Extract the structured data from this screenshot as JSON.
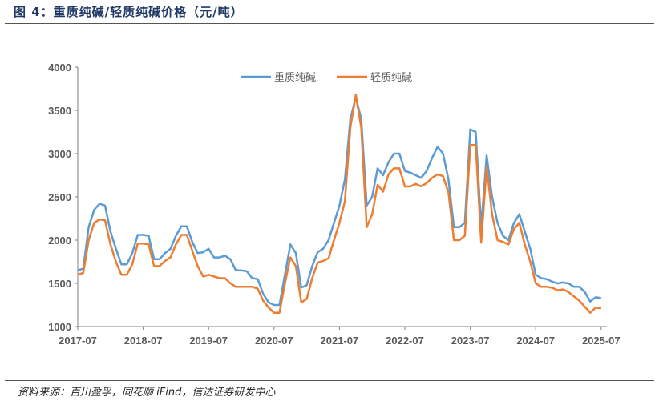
{
  "title": "图 4：重质纯碱/轻质纯碱价格（元/吨）",
  "source": "资料来源：百川盈孚，同花顺 iFind，信达证券研发中心",
  "chart_data": {
    "type": "line",
    "title": "重质纯碱/轻质纯碱价格（元/吨）",
    "xlabel": "",
    "ylabel": "",
    "ylim": [
      1000,
      4000
    ],
    "yticks": [
      "1000",
      "1500",
      "2000",
      "2500",
      "3000",
      "3500",
      "4000"
    ],
    "xticks": [
      "2017-07",
      "2018-07",
      "2019-07",
      "2020-07",
      "2021-07",
      "2022-07",
      "2023-07",
      "2024-07",
      "2025-07"
    ],
    "grid": false,
    "legend_position": "top-center",
    "x": [
      "2017-07",
      "2017-08",
      "2017-09",
      "2017-10",
      "2017-11",
      "2017-12",
      "2018-01",
      "2018-02",
      "2018-03",
      "2018-04",
      "2018-05",
      "2018-06",
      "2018-07",
      "2018-08",
      "2018-09",
      "2018-10",
      "2018-11",
      "2018-12",
      "2019-01",
      "2019-02",
      "2019-03",
      "2019-04",
      "2019-05",
      "2019-06",
      "2019-07",
      "2019-08",
      "2019-09",
      "2019-10",
      "2019-11",
      "2019-12",
      "2020-01",
      "2020-02",
      "2020-03",
      "2020-04",
      "2020-05",
      "2020-06",
      "2020-07",
      "2020-08",
      "2020-09",
      "2020-10",
      "2020-11",
      "2020-12",
      "2021-01",
      "2021-02",
      "2021-03",
      "2021-04",
      "2021-05",
      "2021-06",
      "2021-07",
      "2021-08",
      "2021-09",
      "2021-10",
      "2021-11",
      "2021-12",
      "2022-01",
      "2022-02",
      "2022-03",
      "2022-04",
      "2022-05",
      "2022-06",
      "2022-07",
      "2022-08",
      "2022-09",
      "2022-10",
      "2022-11",
      "2022-12",
      "2023-01",
      "2023-02",
      "2023-03",
      "2023-04",
      "2023-05",
      "2023-06",
      "2023-07",
      "2023-08",
      "2023-09",
      "2023-10",
      "2023-11",
      "2023-12",
      "2024-01",
      "2024-02",
      "2024-03",
      "2024-04",
      "2024-05",
      "2024-06",
      "2024-07",
      "2024-08",
      "2024-09",
      "2024-10",
      "2024-11",
      "2024-12",
      "2025-01",
      "2025-02",
      "2025-03",
      "2025-04",
      "2025-05",
      "2025-06",
      "2025-07"
    ],
    "series": [
      {
        "name": "重质纯碱",
        "color": "#5b9bd5",
        "values": [
          1650,
          1670,
          2150,
          2350,
          2420,
          2400,
          2100,
          1900,
          1720,
          1720,
          1850,
          2060,
          2060,
          2050,
          1780,
          1780,
          1850,
          1900,
          2050,
          2160,
          2160,
          1980,
          1850,
          1860,
          1900,
          1800,
          1800,
          1820,
          1780,
          1650,
          1650,
          1640,
          1560,
          1550,
          1380,
          1280,
          1250,
          1250,
          1600,
          1950,
          1850,
          1450,
          1480,
          1700,
          1860,
          1900,
          2000,
          2200,
          2400,
          2700,
          3400,
          3650,
          3400,
          2400,
          2500,
          2830,
          2750,
          2900,
          3000,
          3000,
          2800,
          2780,
          2750,
          2720,
          2800,
          2950,
          3080,
          3000,
          2700,
          2150,
          2150,
          2200,
          3280,
          3250,
          2150,
          2980,
          2500,
          2200,
          2050,
          2000,
          2200,
          2300,
          2100,
          1900,
          1600,
          1560,
          1550,
          1520,
          1500,
          1510,
          1500,
          1460,
          1460,
          1400,
          1290,
          1340,
          1330
        ]
      },
      {
        "name": "轻质纯碱",
        "color": "#ed7d31",
        "values": [
          1600,
          1620,
          2000,
          2200,
          2240,
          2230,
          1950,
          1750,
          1600,
          1600,
          1720,
          1960,
          1960,
          1950,
          1700,
          1700,
          1760,
          1800,
          1950,
          2060,
          2060,
          1880,
          1700,
          1580,
          1600,
          1580,
          1560,
          1560,
          1500,
          1460,
          1460,
          1460,
          1460,
          1440,
          1300,
          1220,
          1160,
          1160,
          1500,
          1800,
          1700,
          1280,
          1320,
          1560,
          1740,
          1760,
          1790,
          2000,
          2200,
          2450,
          3300,
          3680,
          3300,
          2150,
          2300,
          2640,
          2560,
          2760,
          2830,
          2830,
          2620,
          2620,
          2650,
          2620,
          2660,
          2720,
          2760,
          2740,
          2550,
          2000,
          2000,
          2050,
          3100,
          3100,
          1970,
          2850,
          2300,
          2000,
          1980,
          1950,
          2130,
          2200,
          1950,
          1750,
          1500,
          1460,
          1460,
          1450,
          1420,
          1430,
          1400,
          1350,
          1300,
          1230,
          1160,
          1220,
          1210
        ]
      }
    ]
  }
}
